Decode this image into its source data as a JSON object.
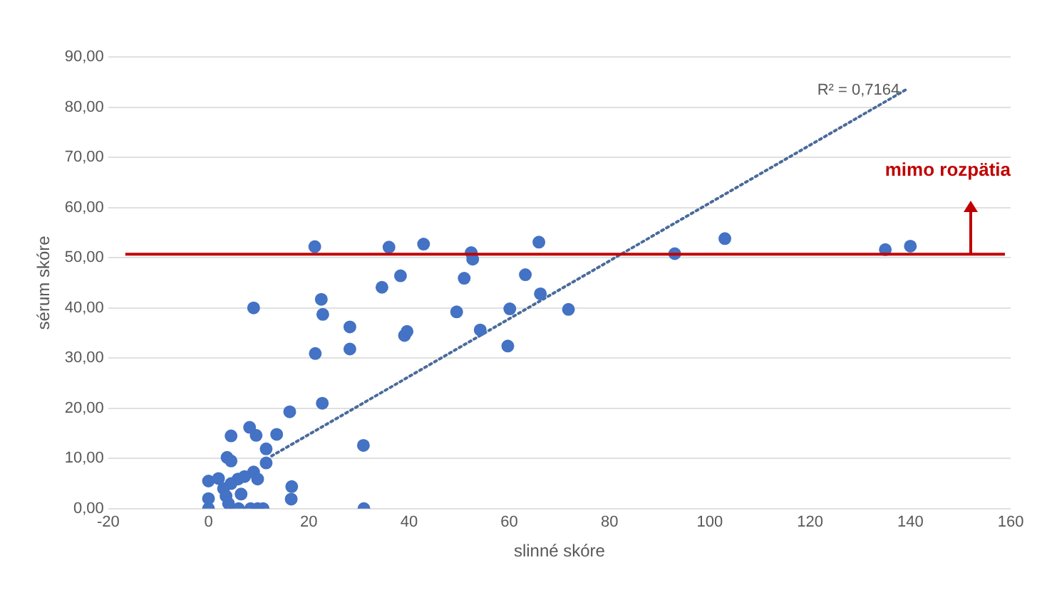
{
  "chart_data": {
    "type": "scatter",
    "xlabel": "slinné skóre",
    "ylabel": "sérum skóre",
    "xlim": [
      -20,
      160
    ],
    "xticks": [
      -20,
      0,
      20,
      40,
      60,
      80,
      100,
      120,
      140,
      160
    ],
    "ylim": [
      0,
      90
    ],
    "yticks": [
      {
        "value": 0,
        "label": "0,00"
      },
      {
        "value": 10,
        "label": "10,00"
      },
      {
        "value": 20,
        "label": "20,00"
      },
      {
        "value": 30,
        "label": "30,00"
      },
      {
        "value": 40,
        "label": "40,00"
      },
      {
        "value": 50,
        "label": "50,00"
      },
      {
        "value": 60,
        "label": "60,00"
      },
      {
        "value": 70,
        "label": "70,00"
      },
      {
        "value": 80,
        "label": "80,00"
      },
      {
        "value": 90,
        "label": "90,00"
      }
    ],
    "grid": "y",
    "legend": false,
    "marker": "circle",
    "series": [
      {
        "color": "#4472c4",
        "x": [
          21.2,
          9.0,
          22.5,
          22.8,
          28.2,
          28.2,
          21.3,
          22.7,
          16.2,
          30.9,
          31,
          16.6,
          16.5,
          13.6,
          11.5,
          11.5,
          8.2,
          9.5,
          4.5,
          3.7,
          4.5,
          9.0,
          9.8,
          7.2,
          5.9,
          6.5,
          6.0,
          8.4,
          9.8,
          10.9,
          0,
          0,
          2,
          3,
          0,
          4,
          4.5,
          3.5,
          34.6,
          36,
          38.3,
          39.1,
          39.6,
          42.9,
          49.5,
          51,
          52.4,
          52.7,
          54.2,
          59.7,
          60.1,
          63.2,
          65.9,
          66.2,
          71.8,
          93,
          103,
          135,
          140
        ],
        "values": [
          52.2,
          40,
          41.7,
          38.7,
          36.2,
          31.8,
          30.9,
          21,
          19.3,
          12.6,
          0,
          4.4,
          1.9,
          14.8,
          11.9,
          9.1,
          16.2,
          14.6,
          14.5,
          10.2,
          9.5,
          7.3,
          5.9,
          6.4,
          5.9,
          2.9,
          0,
          0,
          0,
          0,
          0,
          5.5,
          6,
          4,
          2,
          1,
          5,
          2.5,
          44.1,
          52.1,
          46.4,
          34.5,
          35.3,
          52.7,
          39.2,
          45.9,
          51,
          49.7,
          35.6,
          32.4,
          39.8,
          46.6,
          53.1,
          42.8,
          39.7,
          50.8,
          53.8,
          51.6,
          52.3
        ]
      },
      {
        "type": "line",
        "color": "#4a6b9a",
        "line_style": "dotted",
        "marker": "none",
        "x": [
          12.6,
          139
        ],
        "values": [
          10.5,
          83.4
        ]
      }
    ],
    "ref_lines": [
      {
        "axis": "y",
        "value": 50.7,
        "label": "mimo rozpätia",
        "color": "#c00000"
      }
    ],
    "annotations": [
      {
        "text": "R² = 0,7164",
        "x": 139,
        "y": 83.4
      }
    ]
  }
}
